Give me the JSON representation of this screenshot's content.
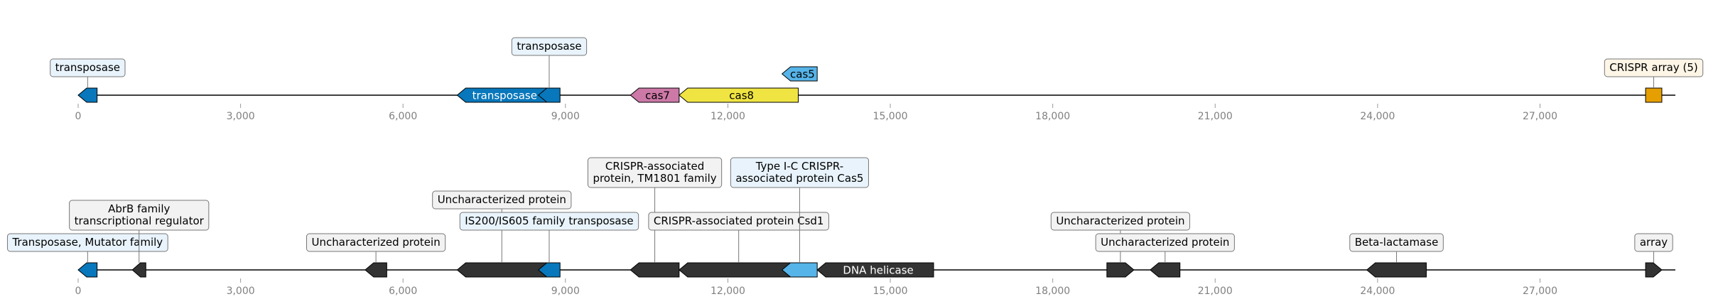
{
  "axis": {
    "min": 0,
    "max": 29500,
    "tick_labels": [
      "0",
      "3,000",
      "6,000",
      "9,000",
      "12,000",
      "15,000",
      "18,000",
      "21,000",
      "24,000",
      "27,000"
    ],
    "tick_values": [
      0,
      3000,
      6000,
      9000,
      12000,
      15000,
      18000,
      21000,
      24000,
      27000
    ]
  },
  "colors": {
    "backbone": "#000000",
    "tick_text": "#808080",
    "label_box_light": "#e8f3fb",
    "label_box_gray": "#f2f2f2",
    "label_box_cream": "#fdf5e6",
    "gene_dark": "#333333",
    "gene_blue": "#0877bb",
    "gene_light_blue": "#56b4e9",
    "gene_pink": "#cc79a7",
    "gene_yellow": "#f0e442",
    "gene_orange": "#e69f00"
  },
  "tracks": [
    {
      "name": "annotated-track",
      "features": [
        {
          "start": 0,
          "end": 350,
          "strand": -1,
          "color": "gene_blue",
          "label": "transposase",
          "label_mode": "above",
          "label_level": 1,
          "label_box": "label_box_light"
        },
        {
          "start": 7000,
          "end": 8650,
          "strand": -1,
          "color": "gene_blue",
          "label": "transposase",
          "label_mode": "inline",
          "inline_text_color": "#ffffff"
        },
        {
          "start": 8500,
          "end": 8900,
          "strand": -1,
          "color": "gene_blue",
          "label": "transposase",
          "label_mode": "above",
          "label_level": 2,
          "label_box": "label_box_light"
        },
        {
          "start": 10200,
          "end": 11100,
          "strand": -1,
          "color": "gene_pink",
          "label": "cas7",
          "label_mode": "inline",
          "inline_text_color": "#000000"
        },
        {
          "start": 11100,
          "end": 13300,
          "strand": -1,
          "color": "gene_yellow",
          "label": "cas8",
          "label_mode": "inline",
          "inline_text_color": "#000000"
        },
        {
          "start": 13000,
          "end": 13650,
          "strand": -1,
          "color": "gene_light_blue",
          "label": "cas5",
          "label_mode": "inline",
          "inline_text_color": "#000000",
          "offset_up": 1
        },
        {
          "start": 28950,
          "end": 29250,
          "strand": 0,
          "color": "gene_orange",
          "label": "CRISPR array (5)",
          "label_mode": "above",
          "label_level": 1,
          "label_box": "label_box_cream"
        }
      ]
    },
    {
      "name": "detailed-track",
      "features": [
        {
          "start": 0,
          "end": 350,
          "strand": -1,
          "color": "gene_blue",
          "label": "Transposase, Mutator family",
          "label_mode": "above",
          "label_level": 1,
          "label_box": "label_box_light"
        },
        {
          "start": 1000,
          "end": 1250,
          "strand": -1,
          "color": "gene_dark",
          "label": "AbrB family\ntranscriptional regulator",
          "label_mode": "above",
          "label_level": 2,
          "label_box": "label_box_gray"
        },
        {
          "start": 5300,
          "end": 5700,
          "strand": -1,
          "color": "gene_dark",
          "label": "Uncharacterized protein",
          "label_mode": "above",
          "label_level": 1,
          "label_box": "label_box_gray"
        },
        {
          "start": 7000,
          "end": 8650,
          "strand": -1,
          "color": "gene_dark",
          "label": "Uncharacterized protein",
          "label_mode": "above",
          "label_level": 3,
          "label_box": "label_box_gray"
        },
        {
          "start": 8500,
          "end": 8900,
          "strand": -1,
          "color": "gene_blue",
          "label": "IS200/IS605 family transposase",
          "label_mode": "above",
          "label_level": 2,
          "label_box": "label_box_light"
        },
        {
          "start": 10200,
          "end": 11100,
          "strand": -1,
          "color": "gene_dark",
          "label": "CRISPR-associated\nprotein, TM1801 family",
          "label_mode": "above",
          "label_level": 4,
          "label_box": "label_box_gray"
        },
        {
          "start": 11100,
          "end": 13300,
          "strand": -1,
          "color": "gene_dark",
          "label": "CRISPR-associated protein Csd1",
          "label_mode": "above",
          "label_level": 2,
          "label_box": "label_box_gray"
        },
        {
          "start": 13000,
          "end": 13650,
          "strand": -1,
          "color": "gene_light_blue",
          "label": "Type I-C CRISPR-\nassociated protein Cas5",
          "label_mode": "above",
          "label_level": 4,
          "label_box": "label_box_light"
        },
        {
          "start": 13650,
          "end": 15800,
          "strand": -1,
          "color": "gene_dark",
          "label": "DNA helicase",
          "label_mode": "inline",
          "inline_text_color": "#ffffff"
        },
        {
          "start": 19000,
          "end": 19500,
          "strand": 1,
          "color": "gene_dark",
          "label": "Uncharacterized protein",
          "label_mode": "above",
          "label_level": 2,
          "label_box": "label_box_gray"
        },
        {
          "start": 19800,
          "end": 20350,
          "strand": -1,
          "color": "gene_dark",
          "label": "Uncharacterized protein",
          "label_mode": "above",
          "label_level": 1,
          "label_box": "label_box_gray"
        },
        {
          "start": 23800,
          "end": 24900,
          "strand": -1,
          "color": "gene_dark",
          "label": "Beta-lactamase",
          "label_mode": "above",
          "label_level": 1,
          "label_box": "label_box_gray"
        },
        {
          "start": 28950,
          "end": 29250,
          "strand": 1,
          "color": "gene_dark",
          "label": "array",
          "label_mode": "above",
          "label_level": 1,
          "label_box": "label_box_gray"
        }
      ]
    }
  ]
}
